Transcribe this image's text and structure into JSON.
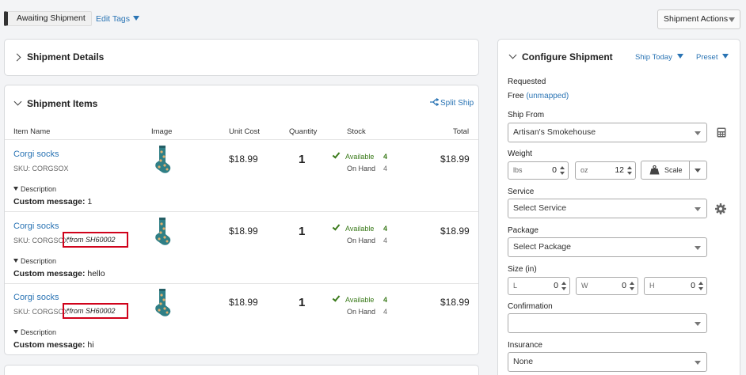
{
  "topbar": {
    "status_tag": "Awaiting Shipment",
    "edit_tags": "Edit Tags",
    "shipment_actions": "Shipment Actions"
  },
  "shipment_details": {
    "title": "Shipment Details"
  },
  "shipment_items": {
    "title": "Shipment Items",
    "split_ship": "Split Ship",
    "columns": [
      "Item Name",
      "Image",
      "Unit Cost",
      "Quantity",
      "Stock",
      "Total"
    ],
    "rows": [
      {
        "name": "Corgi socks",
        "sku": "SKU: CORGSOX",
        "from": "",
        "unit_cost": "$18.99",
        "quantity": "1",
        "available_label": "Available",
        "available": "4",
        "on_hand_label": "On Hand",
        "on_hand": "4",
        "total": "$18.99",
        "description_label": "Description",
        "custom_message_label": "Custom message:",
        "custom_message": "1"
      },
      {
        "name": "Corgi socks",
        "sku": "SKU: CORGSOX",
        "from": "*from SH60002",
        "unit_cost": "$18.99",
        "quantity": "1",
        "available_label": "Available",
        "available": "4",
        "on_hand_label": "On Hand",
        "on_hand": "4",
        "total": "$18.99",
        "description_label": "Description",
        "custom_message_label": "Custom message:",
        "custom_message": "hello"
      },
      {
        "name": "Corgi socks",
        "sku": "SKU: CORGSOX",
        "from": "*from SH60002",
        "unit_cost": "$18.99",
        "quantity": "1",
        "available_label": "Available",
        "available": "4",
        "on_hand_label": "On Hand",
        "on_hand": "4",
        "total": "$18.99",
        "description_label": "Description",
        "custom_message_label": "Custom message:",
        "custom_message": "hi"
      }
    ]
  },
  "configure": {
    "title": "Configure Shipment",
    "ship_today": "Ship Today",
    "preset": "Preset",
    "requested_label": "Requested",
    "requested_value": "Free",
    "requested_mapping": "(unmapped)",
    "ship_from_label": "Ship From",
    "ship_from_value": "Artisan's Smokehouse",
    "weight_label": "Weight",
    "weight_lbs_unit": "lbs",
    "weight_lbs": "0",
    "weight_oz_unit": "oz",
    "weight_oz": "12",
    "scale_label": "Scale",
    "service_label": "Service",
    "service_value": "Select Service",
    "package_label": "Package",
    "package_value": "Select Package",
    "size_label": "Size (in)",
    "size_l_unit": "L",
    "size_l": "0",
    "size_w_unit": "W",
    "size_w": "0",
    "size_h_unit": "H",
    "size_h": "0",
    "confirmation_label": "Confirmation",
    "confirmation_value": "",
    "insurance_label": "Insurance",
    "insurance_value": "None"
  },
  "colors": {
    "link": "#2a74b4",
    "available": "#3a7a1a",
    "highlight": "#d0021b"
  }
}
